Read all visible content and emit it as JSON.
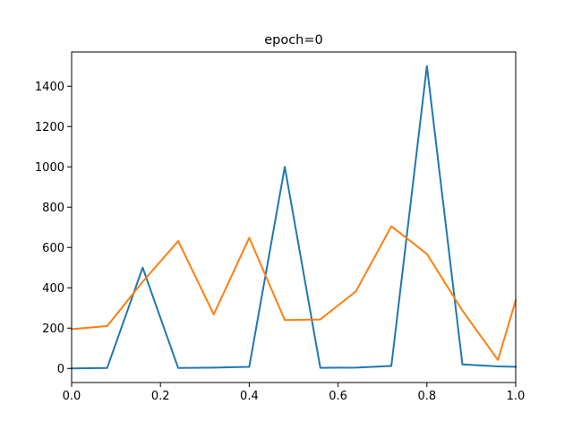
{
  "chart_data": {
    "type": "line",
    "title": "epoch=0",
    "xlabel": "",
    "ylabel": "",
    "xlim": [
      0,
      1
    ],
    "ylim": [
      -70,
      1570
    ],
    "x_ticks": [
      0,
      0.2,
      0.4,
      0.6,
      0.8,
      1
    ],
    "x_tick_labels": [
      "0.0",
      "0.2",
      "0.4",
      "0.6",
      "0.8",
      "1.0"
    ],
    "y_ticks": [
      0,
      200,
      400,
      600,
      800,
      1000,
      1200,
      1400
    ],
    "y_tick_labels": [
      "0",
      "200",
      "400",
      "600",
      "800",
      "1000",
      "1200",
      "1400"
    ],
    "grid": false,
    "x": [
      0.0,
      0.08,
      0.16,
      0.24,
      0.32,
      0.4,
      0.48,
      0.56,
      0.64,
      0.72,
      0.8,
      0.88,
      0.96,
      1.0
    ],
    "series": [
      {
        "color": "#1f77b4",
        "values": [
          0,
          2,
          500,
          2,
          4,
          8,
          1000,
          3,
          4,
          12,
          1500,
          20,
          10,
          8
        ]
      },
      {
        "color": "#ff7f0e",
        "values": [
          195,
          210,
          430,
          632,
          268,
          648,
          240,
          243,
          382,
          705,
          568,
          287,
          42,
          337
        ]
      }
    ]
  }
}
